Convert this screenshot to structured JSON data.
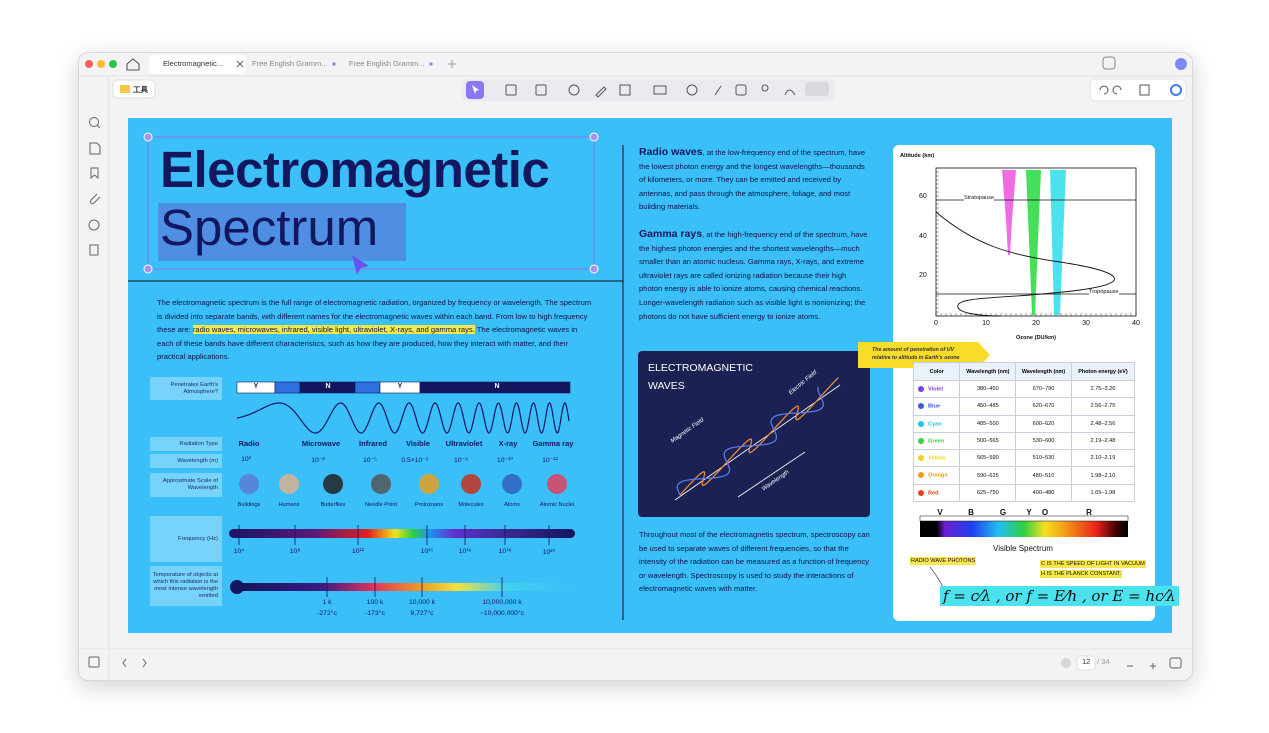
{
  "tabs": [
    "Electromagnetic...",
    "Free English Gramm...",
    "Free English Gramm..."
  ],
  "toolbar": {
    "tools_label": "工具"
  },
  "page": {
    "title_line1": "Electromagnetic",
    "title_line2": "Spectrum",
    "intro": {
      "before": "The electromagnetic spectrum is the full range of electromagnetic radiation, organized by frequency or wavelength. The spectrum is divided into separate bands, with different names for the electromagnetic waves within each band. From low to high frequency these are: ",
      "highlight": "radio waves, microwaves, infrared, visible light, ultraviolet, X-rays, and gamma rays.",
      "after": " The electromagnetic waves in each of these bands have different characteristics, such as how they are produced, how they interact with matter, and their practical applications."
    },
    "spectrum": {
      "row_labels": {
        "penetrates": "Penetrates Earth's Atmosphere?",
        "type": "Radiation Type",
        "wavelength": "Wavelength (m)",
        "scale": "Approximate Scale of Wavelength",
        "frequency": "Frequency (Hz)",
        "temperature": "Temperature of objects at which this radiation is the most intense wavelength emitted"
      },
      "penetration": [
        "Y",
        "N",
        "Y",
        "N"
      ],
      "types": [
        "Radio",
        "Microwave",
        "Infrared",
        "Visible",
        "Ultraviolet",
        "X-ray",
        "Gamma ray"
      ],
      "wavelengths": [
        "10³",
        "10⁻²",
        "10⁻⁵",
        "0.5×10⁻⁶",
        "10⁻⁸",
        "10⁻¹⁰",
        "10⁻¹²"
      ],
      "scales": [
        "Buildings",
        "Humans",
        "Butterflies",
        "Needle Point",
        "Protozoans",
        "Molecules",
        "Atoms",
        "Atomic Nuclei"
      ],
      "frequencies": [
        "10⁴",
        "10⁸",
        "10¹²",
        "10¹⁵",
        "10¹⁶",
        "10¹⁸",
        "10²⁰"
      ],
      "temperatures": [
        {
          "kelvin": "1 k",
          "celsius": "-272°c"
        },
        {
          "kelvin": "100 k",
          "celsius": "-173°c"
        },
        {
          "kelvin": "10,000 k",
          "celsius": "9,727°c"
        },
        {
          "kelvin": "10,000,000 k",
          "celsius": "~10,000,000°c"
        }
      ]
    },
    "radio_waves": {
      "heading": "Radio waves",
      "text": ", at the low-frequency end of the spectrum, have the lowest photon energy and the longest wavelengths—thousands of kilometers, or more. They can be emitted and received by antennas, and pass through the atmosphere, foliage, and most building materials."
    },
    "gamma_rays": {
      "heading": "Gamma rays",
      "text": ", at the high-frequency end of the spectrum, have the highest photon energies and the shortest wavelengths—much smaller than an atomic nucleus. Gamma rays, X-rays, and extreme ultraviolet rays are called ionizing radiation because their high photon energy is able to ionize atoms, causing chemical reactions. Longer-wavelength radiation such as visible light is nonionizing; the photons do not have sufficient energy to ionize atoms."
    },
    "em_waves": {
      "title_line1": "ELECTROMAGNETIC",
      "title_line2": "WAVES",
      "labels": [
        "Electric Field",
        "Magnetic Field",
        "Wavelength"
      ]
    },
    "spectroscopy_text": "Throughout most of the electromagnetis spectrum, spectroscopy can be used to separate waves of different frequencies, so that the intensity of the radiation can be measured as a function of frequency or wavelength. Spectroscopy is used to study the interactions of electromagnetic waves with matter.",
    "ozone_chart": {
      "y_label": "Altitude (km)",
      "x_label": "Ozone (DU/km)",
      "yticks": [
        "60",
        "40",
        "20"
      ],
      "xticks": [
        "0",
        "10",
        "20",
        "30",
        "40"
      ],
      "annotations": [
        "Stratopause",
        "Tropopause"
      ]
    },
    "sticky_note": "The amount of penetration of UV relative to altitude in Earth's ozone",
    "table": {
      "headers": [
        "Color",
        "Wavelength (nm)",
        "Wavelength (nm)",
        "Photon energy (eV)"
      ],
      "row_colors": [
        "#7b3fe4",
        "#3b5bdb",
        "#22c3e6",
        "#3ecf3e",
        "#f2d21b",
        "#f59a16",
        "#e8401c"
      ],
      "rows": [
        [
          "Violet",
          "380–450",
          "670–790",
          "2.75–3.26"
        ],
        [
          "Blue",
          "450–485",
          "620–670",
          "2.56–2.75"
        ],
        [
          "Cyan",
          "485–500",
          "600–620",
          "2.48–2.56"
        ],
        [
          "Green",
          "500–565",
          "530–600",
          "2.19–2.48"
        ],
        [
          "Yellow",
          "565–590",
          "510–530",
          "2.10–2.19"
        ],
        [
          "Orange",
          "590–625",
          "480–510",
          "1.98–2.10"
        ],
        [
          "Red",
          "625–750",
          "400–480",
          "1.65–1.98"
        ]
      ]
    },
    "visible_spectrum": {
      "letters": [
        "V",
        "B",
        "G",
        "Y",
        "O",
        "R"
      ],
      "caption": "Visible Spectrum"
    },
    "notes": {
      "radio_photons": "RADIO WAVE PHOTONS",
      "c_note": "C IS THE SPEED OF LIGHT IN VACUUM",
      "h_note": "H IS THE PLANCK CONSTANT.",
      "formula": "f = c⁄λ , or f = E⁄h , or E = hc⁄λ"
    }
  },
  "pager": {
    "current": "12",
    "total": "/ 34"
  }
}
